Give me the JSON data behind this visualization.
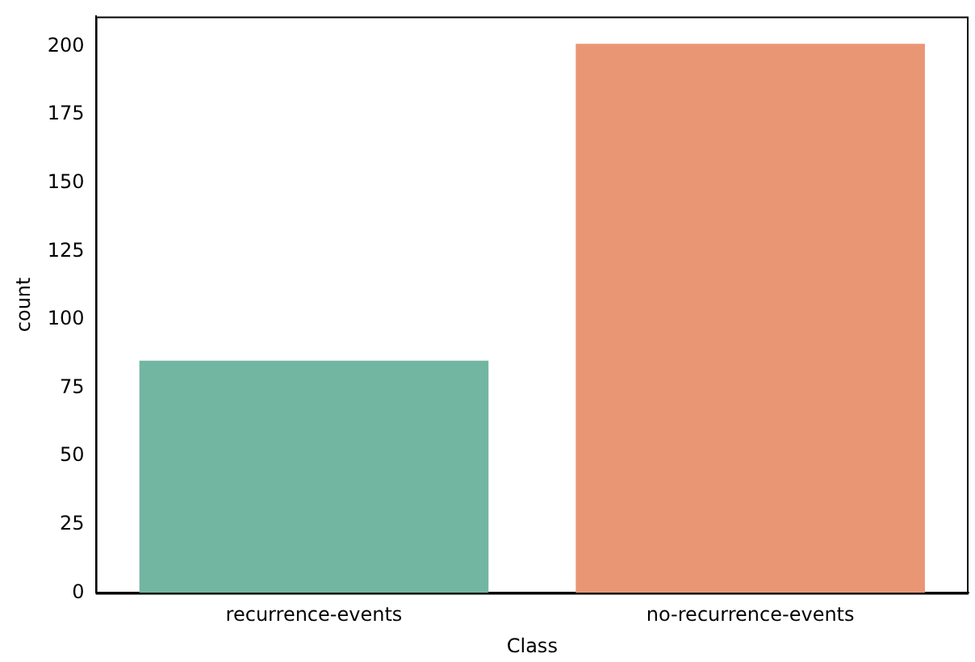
{
  "chart_data": {
    "type": "bar",
    "xlabel": "Class",
    "ylabel": "count",
    "categories": [
      "recurrence-events",
      "no-recurrence-events"
    ],
    "values": [
      85,
      201
    ],
    "colors": [
      "#72b6a1",
      "#e99675"
    ],
    "ylim": [
      0,
      211
    ],
    "yticks": [
      0,
      25,
      50,
      75,
      100,
      125,
      150,
      175,
      200
    ],
    "grid": false,
    "legend": false
  }
}
